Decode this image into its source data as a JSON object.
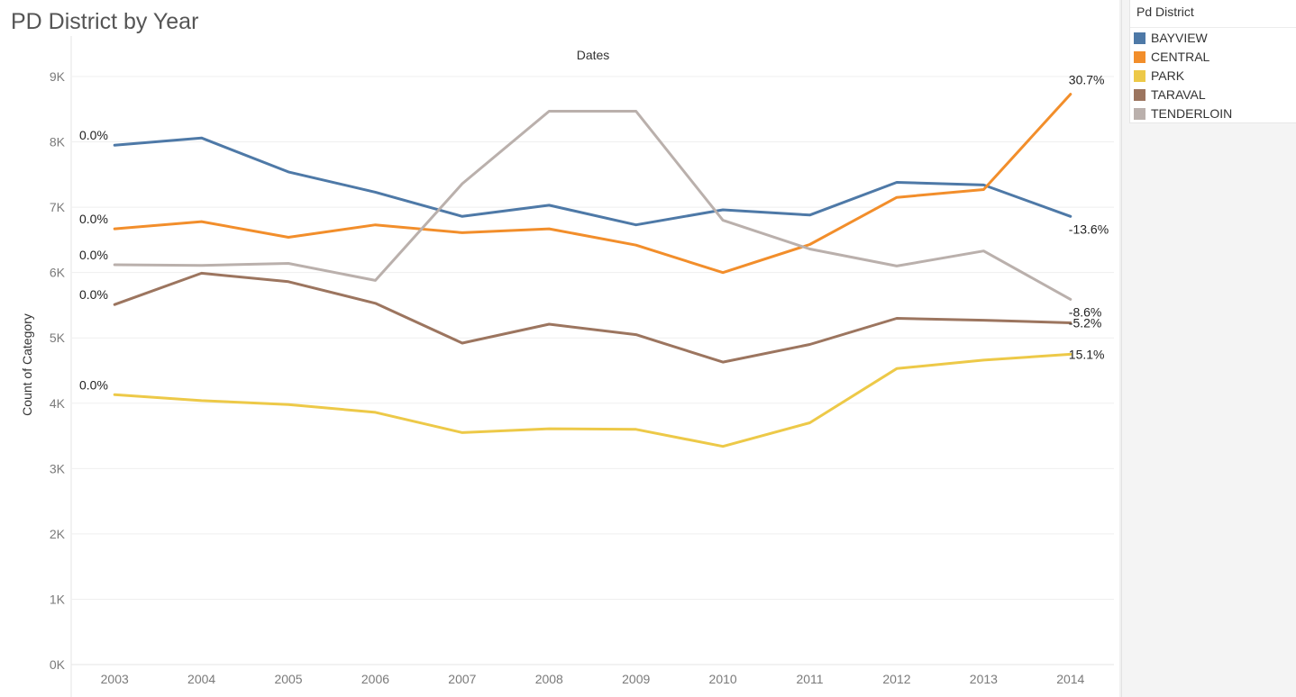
{
  "title": "PD District by Year",
  "legend": {
    "title": "Pd District",
    "items": [
      {
        "label": "BAYVIEW",
        "color": "#4e79a7"
      },
      {
        "label": "CENTRAL",
        "color": "#f28e2b"
      },
      {
        "label": "PARK",
        "color": "#edc948"
      },
      {
        "label": "TARAVAL",
        "color": "#9c755f"
      },
      {
        "label": "TENDERLOIN",
        "color": "#bab0ac"
      }
    ]
  },
  "chart_data": {
    "type": "line",
    "title": "PD District by Year",
    "column_header": "Dates",
    "xlabel": "",
    "ylabel": "Count of Category",
    "ylim": [
      0,
      9000
    ],
    "yticks": [
      "0K",
      "1K",
      "2K",
      "3K",
      "4K",
      "5K",
      "6K",
      "7K",
      "8K",
      "9K"
    ],
    "x": [
      "2003",
      "2004",
      "2005",
      "2006",
      "2007",
      "2008",
      "2009",
      "2010",
      "2011",
      "2012",
      "2013",
      "2014"
    ],
    "grid": true,
    "legend_position": "right",
    "series": [
      {
        "name": "BAYVIEW",
        "color": "#4e79a7",
        "values": [
          7950,
          8060,
          7540,
          7230,
          6860,
          7030,
          6730,
          6960,
          6880,
          7380,
          7340,
          6860
        ],
        "start_label": "0.0%",
        "end_label": "-13.6%"
      },
      {
        "name": "CENTRAL",
        "color": "#f28e2b",
        "values": [
          6670,
          6780,
          6540,
          6730,
          6610,
          6670,
          6420,
          6000,
          6430,
          7150,
          7270,
          8730
        ],
        "start_label": "0.0%",
        "end_label": "30.7%"
      },
      {
        "name": "PARK",
        "color": "#edc948",
        "values": [
          4130,
          4040,
          3980,
          3860,
          3550,
          3610,
          3600,
          3340,
          3700,
          4530,
          4660,
          4750
        ],
        "start_label": "0.0%",
        "end_label": "15.1%"
      },
      {
        "name": "TARAVAL",
        "color": "#9c755f",
        "values": [
          5510,
          5990,
          5860,
          5530,
          4920,
          5210,
          5050,
          4630,
          4900,
          5300,
          5270,
          5230
        ],
        "start_label": "0.0%",
        "end_label": "-5.2%"
      },
      {
        "name": "TENDERLOIN",
        "color": "#bab0ac",
        "values": [
          6120,
          6110,
          6140,
          5880,
          7360,
          8470,
          8470,
          6800,
          6360,
          6100,
          6330,
          5590
        ],
        "start_label": "0.0%",
        "end_label": "-8.6%"
      }
    ]
  }
}
